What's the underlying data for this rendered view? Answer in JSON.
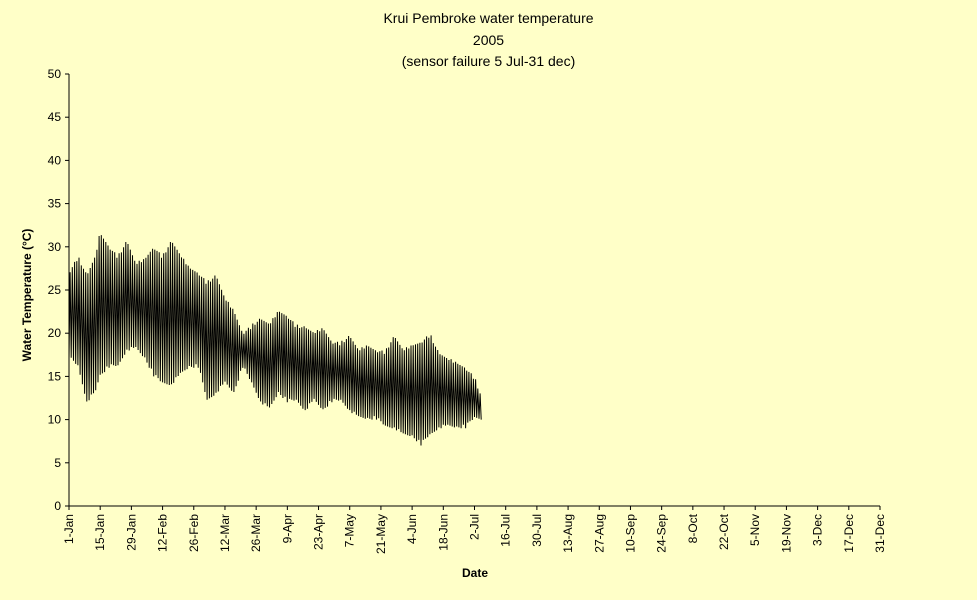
{
  "chart_data": {
    "type": "line",
    "title": "Krui Pembroke water temperature",
    "subtitle": "2005",
    "note": "(sensor failure 5 Jul-31 dec)",
    "xlabel": "Date",
    "ylabel": "Water Temperature (°C)",
    "ylim": [
      0,
      50
    ],
    "yticks": [
      0,
      5,
      10,
      15,
      20,
      25,
      30,
      35,
      40,
      45,
      50
    ],
    "xlim": [
      "2005-01-01",
      "2005-12-31"
    ],
    "xtick_labels": [
      "1-Jan",
      "15-Jan",
      "29-Jan",
      "12-Feb",
      "26-Feb",
      "12-Mar",
      "26-Mar",
      "9-Apr",
      "23-Apr",
      "7-May",
      "21-May",
      "4-Jun",
      "18-Jun",
      "2-Jul",
      "16-Jul",
      "30-Jul",
      "13-Aug",
      "27-Aug",
      "10-Sep",
      "24-Sep",
      "8-Oct",
      "22-Oct",
      "5-Nov",
      "19-Nov",
      "3-Dec",
      "17-Dec",
      "31-Dec"
    ],
    "xtick_dates": [
      "2005-01-01",
      "2005-01-15",
      "2005-01-29",
      "2005-02-12",
      "2005-02-26",
      "2005-03-12",
      "2005-03-26",
      "2005-04-09",
      "2005-04-23",
      "2005-05-07",
      "2005-05-21",
      "2005-06-04",
      "2005-06-18",
      "2005-07-02",
      "2005-07-16",
      "2005-07-30",
      "2005-08-13",
      "2005-08-27",
      "2005-09-10",
      "2005-09-24",
      "2005-10-08",
      "2005-10-22",
      "2005-11-05",
      "2005-11-19",
      "2005-12-03",
      "2005-12-17",
      "2005-12-31"
    ],
    "grid": false,
    "legend": "none",
    "line_color": "#000000",
    "background_color": "#ffffc8",
    "series": [
      {
        "x": [
          "2005-01-01",
          "2005-01-05",
          "2005-01-09",
          "2005-01-13",
          "2005-01-15",
          "2005-01-19",
          "2005-01-23",
          "2005-01-27",
          "2005-01-31",
          "2005-02-04",
          "2005-02-08",
          "2005-02-12",
          "2005-02-16",
          "2005-02-20",
          "2005-02-24",
          "2005-02-28",
          "2005-03-04",
          "2005-03-08",
          "2005-03-12",
          "2005-03-16",
          "2005-03-20",
          "2005-03-24",
          "2005-03-28",
          "2005-04-01",
          "2005-04-05",
          "2005-04-09",
          "2005-04-13",
          "2005-04-17",
          "2005-04-21",
          "2005-04-25",
          "2005-04-29",
          "2005-05-03",
          "2005-05-07",
          "2005-05-11",
          "2005-05-15",
          "2005-05-19",
          "2005-05-23",
          "2005-05-27",
          "2005-05-31",
          "2005-06-04",
          "2005-06-08",
          "2005-06-12",
          "2005-06-16",
          "2005-06-20",
          "2005-06-24",
          "2005-06-28",
          "2005-07-02",
          "2005-07-05"
        ],
        "min": [
          17,
          16,
          12,
          13,
          15,
          16,
          16,
          18,
          18,
          17,
          15,
          14,
          14,
          15,
          16,
          16,
          12,
          13,
          14,
          13,
          16,
          14,
          12,
          11,
          13,
          12,
          12,
          11,
          12,
          11,
          12,
          12,
          11,
          10,
          10,
          10,
          9,
          9,
          8,
          8,
          7,
          8,
          9,
          9,
          9,
          9,
          10,
          10
        ],
        "max": [
          27,
          29,
          27,
          29,
          32,
          30,
          29,
          31,
          28,
          29,
          30,
          29,
          31,
          29,
          28,
          27,
          26,
          27,
          24,
          23,
          20,
          21,
          22,
          21,
          23,
          22,
          21,
          21,
          20,
          21,
          19,
          19,
          20,
          18,
          19,
          18,
          18,
          20,
          18,
          19,
          19,
          20,
          18,
          17,
          17,
          16,
          15,
          13
        ]
      }
    ]
  }
}
